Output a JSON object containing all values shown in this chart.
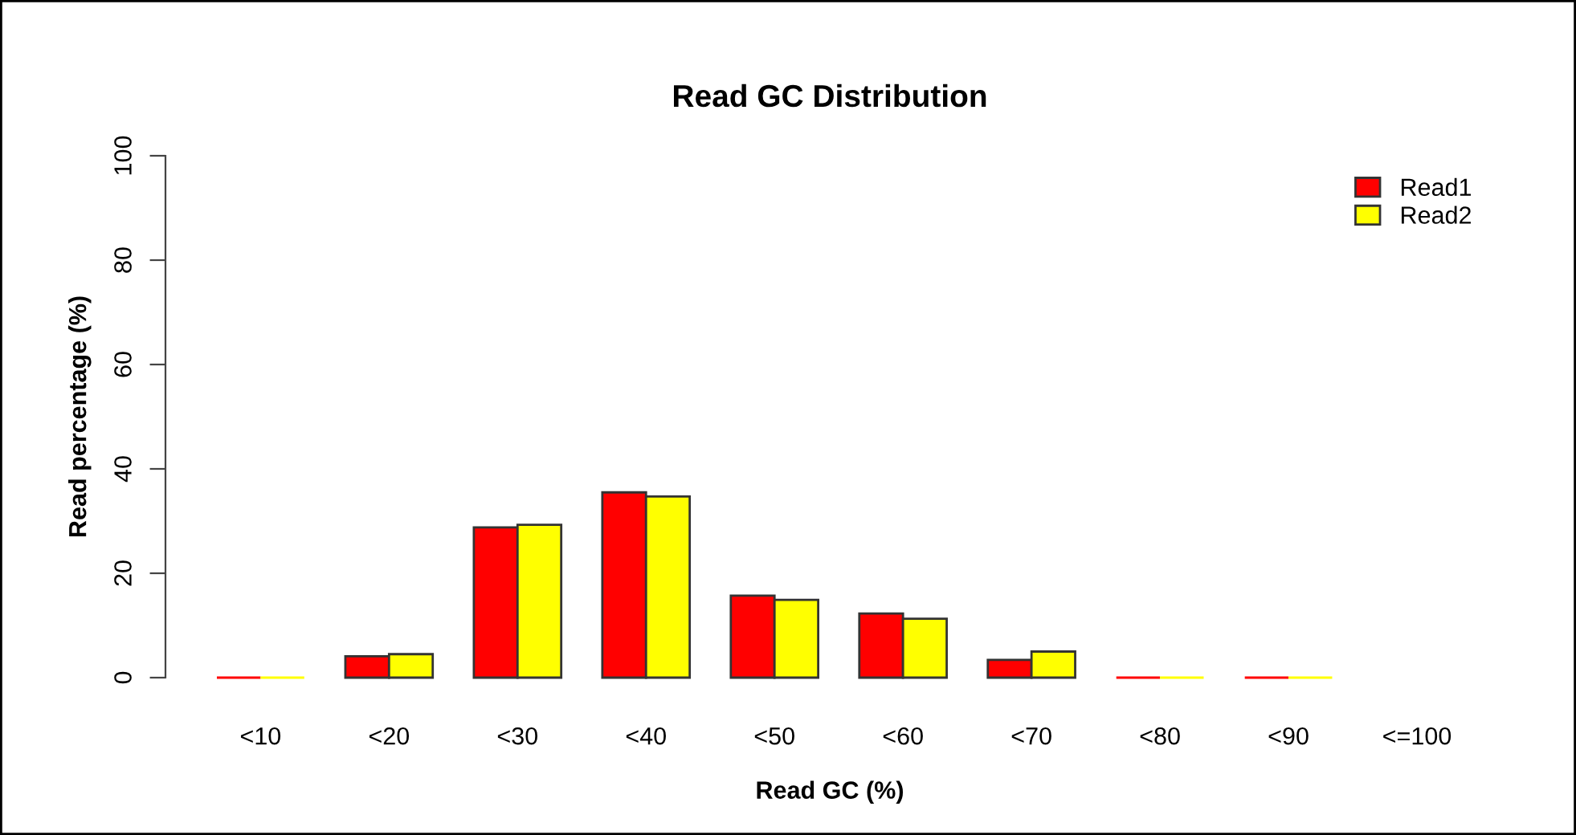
{
  "chart_data": {
    "type": "bar",
    "title": "Read GC Distribution",
    "xlabel": "Read GC (%)",
    "ylabel": "Read percentage (%)",
    "categories": [
      "<10",
      "<20",
      "<30",
      "<40",
      "<50",
      "<60",
      "<70",
      "<80",
      "<90",
      "<=100"
    ],
    "series": [
      {
        "name": "Read1",
        "color": "#ff0000",
        "values": [
          0,
          4.1,
          28.8,
          35.5,
          15.7,
          12.3,
          3.4,
          0,
          0,
          null
        ]
      },
      {
        "name": "Read2",
        "color": "#ffff00",
        "values": [
          0,
          4.5,
          29.3,
          34.7,
          14.9,
          11.3,
          5.0,
          0,
          0,
          null
        ]
      }
    ],
    "ylim": [
      0,
      100
    ],
    "yticks": [
      0,
      20,
      40,
      60,
      80,
      100
    ],
    "grid": false,
    "legend": "top right"
  }
}
